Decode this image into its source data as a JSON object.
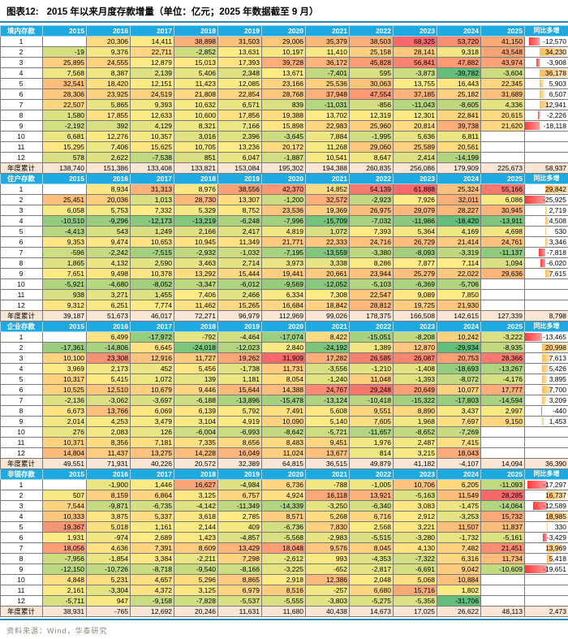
{
  "title": {
    "prefix": "图表12:",
    "text": "2015 年以来月度存款增量（单位：亿元；2025 年数据截至 9 月）"
  },
  "source": "资料来源：Wind，华泰研究",
  "colors": {
    "header_bg": "#1FA9E1",
    "cumulative_bg": "#FBE5D5",
    "heat_min": "#63BE7B",
    "heat_mid": "#FFEB84",
    "heat_max": "#F8696B",
    "bar_pos_start": "#FFBE5C",
    "bar_pos_end": "#FFE6BE",
    "bar_neg_start": "#FF3B3B",
    "bar_neg_end": "#FF9D9D",
    "accent_line": "#2B87B8"
  },
  "chart_data": {
    "type": "heatmap",
    "unit": "亿元",
    "years": [
      "2015",
      "2016",
      "2017",
      "2018",
      "2019",
      "2020",
      "2021",
      "2022",
      "2023",
      "2024",
      "2025"
    ],
    "yoy_header": "同比多增",
    "cumulative_label": "年度累计",
    "months": [
      "1",
      "2",
      "3",
      "4",
      "5",
      "6",
      "7",
      "8",
      "9",
      "10",
      "11",
      "12"
    ],
    "sections": [
      {
        "name": "境内存款",
        "rows": [
          [
            null,
            20306,
            14411,
            38898,
            31503,
            29006,
            35379,
            38503,
            68325,
            53720,
            41150
          ],
          [
            -19,
            9376,
            22711,
            -2852,
            13631,
            10197,
            11410,
            25158,
            28141,
            9318,
            43548
          ],
          [
            25895,
            24555,
            12879,
            15013,
            17393,
            39728,
            36172,
            45828,
            56841,
            47882,
            43974
          ],
          [
            7568,
            8387,
            2139,
            5406,
            2348,
            13671,
            -7401,
            595,
            -3873,
            -39782,
            -3604
          ],
          [
            32541,
            18420,
            12151,
            11423,
            12085,
            23166,
            25536,
            30063,
            13755,
            16443,
            22345
          ],
          [
            28306,
            23925,
            24519,
            21808,
            22854,
            28768,
            37948,
            47554,
            37185,
            25182,
            31689
          ],
          [
            22507,
            5865,
            9393,
            10632,
            6571,
            839,
            -11031,
            -856,
            -11043,
            -8605,
            4336
          ],
          [
            1580,
            17855,
            12633,
            10600,
            17856,
            19388,
            13702,
            12319,
            12301,
            22841,
            20615
          ],
          [
            -2192,
            392,
            4129,
            8321,
            7166,
            15898,
            22983,
            25960,
            20814,
            39738,
            21620
          ],
          [
            6681,
            12276,
            10357,
            3016,
            2396,
            -3645,
            7884,
            -1995,
            5636,
            6811,
            null
          ],
          [
            15295,
            7406,
            15625,
            10705,
            13236,
            20172,
            11268,
            29060,
            25589,
            20561,
            null
          ],
          [
            578,
            2622,
            -7538,
            851,
            6047,
            -1887,
            10541,
            8647,
            2414,
            -14199,
            null
          ]
        ],
        "yoy": [
          -12570,
          34230,
          -3908,
          36178,
          5903,
          6507,
          12941,
          -2226,
          -18118,
          null,
          null,
          null
        ],
        "cumulative": [
          138740,
          151386,
          133408,
          133821,
          153084,
          195302,
          194388,
          260835,
          256086,
          179909,
          225673
        ],
        "cumulative_yoy": 58937
      },
      {
        "name": "住户存款",
        "rows": [
          [
            null,
            8934,
            31313,
            8976,
            38556,
            42370,
            14852,
            54139,
            61888,
            25324,
            55166
          ],
          [
            25451,
            20036,
            1013,
            28730,
            13307,
            -1200,
            32572,
            -2923,
            7926,
            32011,
            6086
          ],
          [
            6058,
            5753,
            7332,
            5329,
            8752,
            23536,
            19369,
            26975,
            29079,
            28227,
            30945
          ],
          [
            -10510,
            -9296,
            -12173,
            -13219,
            -6248,
            -7996,
            -15709,
            -7032,
            -11986,
            -18420,
            -13911
          ],
          [
            -4413,
            543,
            1249,
            2166,
            2417,
            4819,
            1072,
            7393,
            5364,
            4169,
            4698
          ],
          [
            9353,
            9474,
            10653,
            10945,
            11349,
            21771,
            22333,
            24716,
            26729,
            21414,
            24761
          ],
          [
            -596,
            -2242,
            -7515,
            -2932,
            -1032,
            -7195,
            -13559,
            -3380,
            -8093,
            -3319,
            -11137
          ],
          [
            1865,
            4132,
            2590,
            3463,
            2714,
            3973,
            3338,
            8286,
            7877,
            7114,
            1094
          ],
          [
            7651,
            9498,
            10378,
            13292,
            15444,
            19441,
            20661,
            23944,
            25279,
            22022,
            29636
          ],
          [
            -5921,
            -4680,
            -8052,
            -3347,
            -6012,
            -9569,
            -12052,
            -5103,
            -6369,
            -5706,
            null
          ],
          [
            938,
            3271,
            1455,
            7406,
            2466,
            6334,
            7308,
            22547,
            9089,
            7850,
            null
          ],
          [
            9312,
            6251,
            7774,
            11462,
            15265,
            16684,
            18842,
            28812,
            19725,
            21930,
            null
          ]
        ],
        "yoy": [
          29842,
          -25925,
          2719,
          4508,
          530,
          3346,
          -7818,
          -6020,
          7615,
          null,
          null,
          null
        ],
        "cumulative": [
          39187,
          51673,
          46017,
          72271,
          96979,
          112969,
          99026,
          178375,
          166508,
          142615,
          127339
        ],
        "cumulative_yoy": 8798
      },
      {
        "name": "企业存款",
        "rows": [
          [
            null,
            6499,
            -17972,
            -792,
            -4464,
            -17074,
            8422,
            -15051,
            -8208,
            10242,
            -3222
          ],
          [
            -17361,
            -14806,
            6645,
            -24018,
            -12023,
            2840,
            -24192,
            1389,
            12870,
            -29934,
            -8935
          ],
          [
            10100,
            23308,
            12916,
            11727,
            19262,
            31909,
            17282,
            26585,
            26087,
            20753,
            28366
          ],
          [
            3969,
            2173,
            452,
            5456,
            -1738,
            11731,
            -3556,
            -1210,
            -1408,
            -18693,
            -13267
          ],
          [
            10317,
            5415,
            1072,
            139,
            1181,
            8054,
            -1240,
            11048,
            -1393,
            -8072,
            -4176
          ],
          [
            10525,
            12510,
            10679,
            9446,
            15644,
            14388,
            24767,
            29248,
            20649,
            10077,
            17777
          ],
          [
            -2136,
            -3062,
            -3697,
            -6188,
            -13896,
            -15478,
            -13124,
            -10418,
            -15322,
            -17803,
            -14594
          ],
          [
            6673,
            13766,
            6069,
            6139,
            5792,
            7491,
            5608,
            9551,
            8890,
            3437,
            2997
          ],
          [
            2014,
            4253,
            3479,
            3104,
            4919,
            10090,
            5140,
            7605,
            1968,
            7697,
            9150
          ],
          [
            276,
            2083,
            126,
            -6004,
            -6993,
            -8642,
            -5721,
            -11657,
            -8652,
            -7269,
            null
          ],
          [
            10371,
            8356,
            7181,
            7335,
            8656,
            8483,
            9451,
            1976,
            2487,
            7415,
            null
          ],
          [
            14804,
            11437,
            13275,
            14228,
            16049,
            11024,
            13677,
            814,
            3215,
            18043,
            null
          ]
        ],
        "yoy": [
          -13465,
          20998,
          7613,
          5426,
          3895,
          7700,
          3209,
          -440,
          1453,
          null,
          null,
          null
        ],
        "cumulative": [
          49551,
          71931,
          40226,
          20572,
          32389,
          64815,
          36515,
          49879,
          41182,
          -4107,
          14094
        ],
        "cumulative_yoy": 36390
      },
      {
        "name": "非银存款",
        "rows": [
          [
            null,
            -1900,
            1446,
            16627,
            -4984,
            6736,
            -788,
            -1005,
            10706,
            6205,
            -11093
          ],
          [
            507,
            8159,
            6864,
            3125,
            6757,
            4924,
            16118,
            13921,
            -5163,
            11549,
            28285
          ],
          [
            7544,
            -9871,
            -6735,
            -4142,
            -11349,
            -14339,
            -3250,
            -6340,
            3083,
            -1475,
            -14064
          ],
          [
            10333,
            3875,
            5337,
            3618,
            2785,
            8571,
            5268,
            6716,
            2912,
            -3253,
            15732
          ],
          [
            19367,
            5018,
            1161,
            2144,
            409,
            -6736,
            7830,
            2568,
            3221,
            11507,
            11837
          ],
          [
            1931,
            -974,
            2689,
            1423,
            -4857,
            -5568,
            -2983,
            -5515,
            -3280,
            -1732,
            -5161
          ],
          [
            18056,
            4636,
            7391,
            8609,
            13429,
            18048,
            9576,
            8045,
            4130,
            7482,
            21451
          ],
          [
            -7956,
            -1854,
            3384,
            -2211,
            7298,
            -2612,
            993,
            -4353,
            -7322,
            6316,
            11734
          ],
          [
            -12150,
            -10726,
            -8718,
            -9540,
            -8166,
            -3225,
            -652,
            -2817,
            -6691,
            9042,
            -10609
          ],
          [
            4848,
            5231,
            4657,
            5296,
            8865,
            2918,
            12386,
            2048,
            5068,
            10884,
            null
          ],
          [
            2161,
            -3304,
            4372,
            3125,
            6979,
            8516,
            -257,
            6680,
            15716,
            1802,
            null
          ],
          [
            -5711,
            947,
            -9158,
            -7828,
            -5537,
            -5555,
            -3803,
            -5275,
            -5356,
            -31706,
            null
          ]
        ],
        "yoy": [
          -17297,
          16737,
          -12589,
          18985,
          330,
          -3429,
          13969,
          5418,
          -19651,
          null,
          null,
          null
        ],
        "cumulative": [
          38931,
          -765,
          12692,
          20246,
          11631,
          11680,
          40438,
          14673,
          17025,
          26622,
          48113
        ],
        "cumulative_yoy": 2473
      }
    ]
  }
}
